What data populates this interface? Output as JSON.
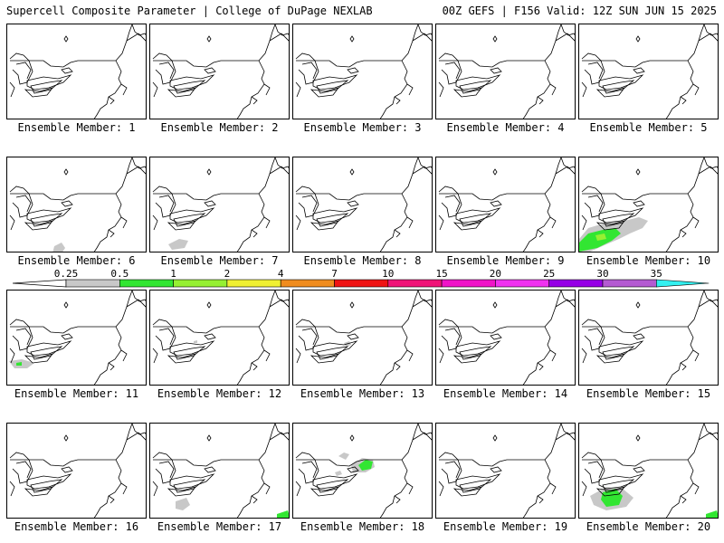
{
  "header": {
    "left": "Supercell Composite Parameter | College of DuPage NEXLAB",
    "right": "00Z GEFS | F156 Valid: 12Z SUN JUN 15 2025"
  },
  "member_label_prefix": "Ensemble Member: ",
  "members": [
    {
      "id": 1,
      "label": "Ensemble Member: 1"
    },
    {
      "id": 2,
      "label": "Ensemble Member: 2"
    },
    {
      "id": 3,
      "label": "Ensemble Member: 3"
    },
    {
      "id": 4,
      "label": "Ensemble Member: 4"
    },
    {
      "id": 5,
      "label": "Ensemble Member: 5"
    },
    {
      "id": 6,
      "label": "Ensemble Member: 6"
    },
    {
      "id": 7,
      "label": "Ensemble Member: 7"
    },
    {
      "id": 8,
      "label": "Ensemble Member: 8"
    },
    {
      "id": 9,
      "label": "Ensemble Member: 9"
    },
    {
      "id": 10,
      "label": "Ensemble Member: 10"
    },
    {
      "id": 11,
      "label": "Ensemble Member: 11"
    },
    {
      "id": 12,
      "label": "Ensemble Member: 12"
    },
    {
      "id": 13,
      "label": "Ensemble Member: 13"
    },
    {
      "id": 14,
      "label": "Ensemble Member: 14"
    },
    {
      "id": 15,
      "label": "Ensemble Member: 15"
    },
    {
      "id": 16,
      "label": "Ensemble Member: 16"
    },
    {
      "id": 17,
      "label": "Ensemble Member: 17"
    },
    {
      "id": 18,
      "label": "Ensemble Member: 18"
    },
    {
      "id": 19,
      "label": "Ensemble Member: 19"
    },
    {
      "id": 20,
      "label": "Ensemble Member: 20"
    }
  ],
  "colorbar": {
    "tick_labels": [
      "0.25",
      "0.5",
      "1",
      "2",
      "4",
      "7",
      "10",
      "15",
      "20",
      "25",
      "30",
      "35"
    ],
    "colors": [
      "#c8c8c8",
      "#32e632",
      "#96f032",
      "#f0f032",
      "#f08c1e",
      "#f01414",
      "#f01478",
      "#f014c8",
      "#f032f0",
      "#9600e6",
      "#b45ad2",
      "#32f0f0"
    ]
  }
}
